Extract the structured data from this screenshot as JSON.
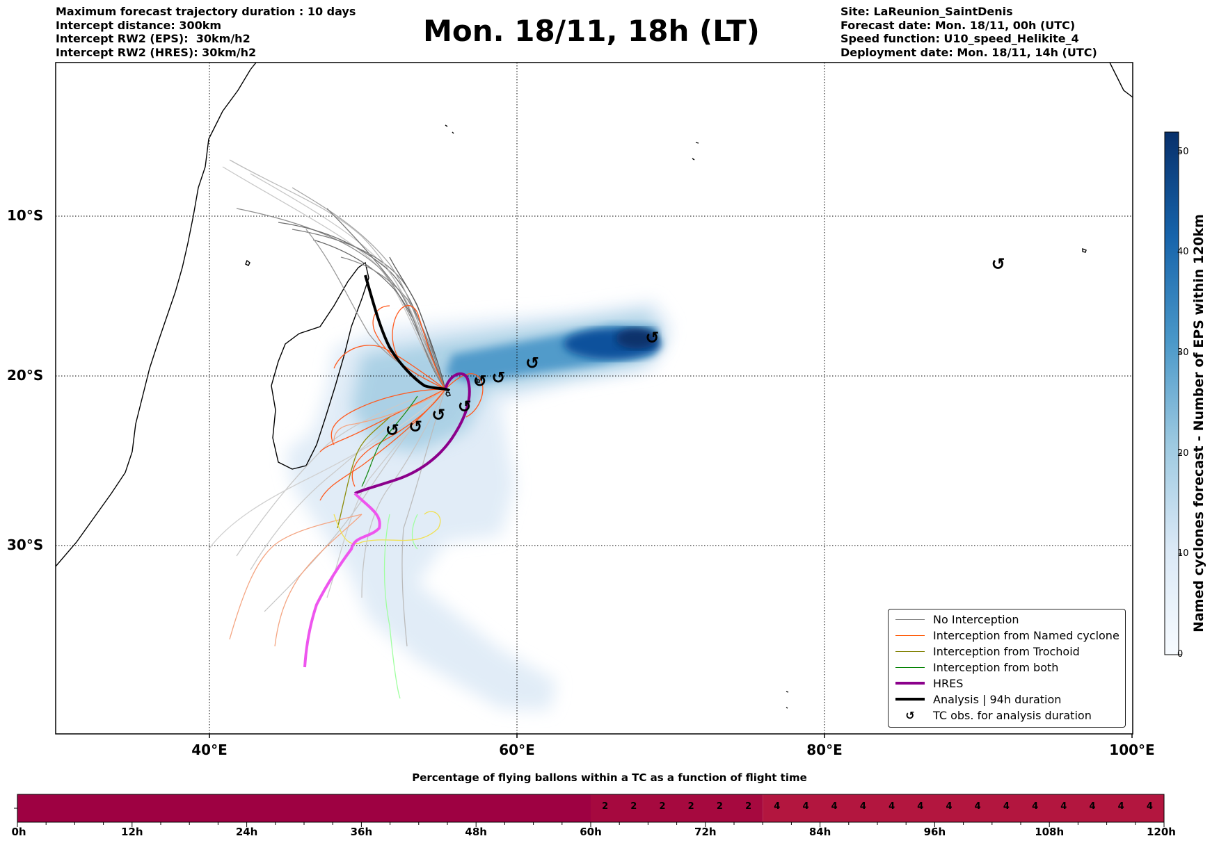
{
  "header": {
    "left_lines": [
      "Maximum forecast trajectory duration : 10 days",
      "Intercept distance: 300km",
      "Intercept RW2 (EPS):  30km/h2",
      "Intercept RW2 (HRES): 30km/h2"
    ],
    "title": "Mon. 18/11, 18h (LT)",
    "right_lines": [
      "Site: LaReunion_SaintDenis",
      "Forecast date: Mon. 18/11, 00h (UTC)",
      "Speed function: U10_speed_Helikite_4",
      "Deployment date: Mon. 18/11, 14h (UTC)"
    ]
  },
  "map": {
    "lat_labels": [
      "10°S",
      "20°S",
      "30°S"
    ],
    "lon_labels": [
      "40°E",
      "60°E",
      "80°E",
      "100°E"
    ],
    "extent": {
      "lon": [
        30,
        100
      ],
      "lat": [
        -43,
        0
      ]
    },
    "tc_obs_positions": [
      {
        "lon": 51.9,
        "lat": -23.2
      },
      {
        "lon": 53.4,
        "lat": -23.0
      },
      {
        "lon": 54.9,
        "lat": -22.3
      },
      {
        "lon": 56.6,
        "lat": -21.8
      },
      {
        "lon": 57.6,
        "lat": -20.3
      },
      {
        "lon": 58.8,
        "lat": -20.1
      },
      {
        "lon": 61.0,
        "lat": -19.2
      },
      {
        "lon": 68.8,
        "lat": -17.6
      },
      {
        "lon": 91.3,
        "lat": -13.0
      }
    ]
  },
  "colorbar": {
    "label": "Named cyclones forecast - Number of EPS within 120km",
    "ticks": [
      "0",
      "10",
      "20",
      "30",
      "40",
      "50"
    ],
    "range": [
      0,
      52
    ],
    "colors": {
      "low": "#f7fbff",
      "high": "#08306b"
    }
  },
  "legend": {
    "items": [
      {
        "label": "No Interception",
        "color": "#7f7f7f",
        "kind": "thin-line"
      },
      {
        "label": "Interception from Named cyclone",
        "color": "#ff5500",
        "kind": "thin-line"
      },
      {
        "label": "Interception from Trochoid",
        "color": "#808000",
        "kind": "thin-line"
      },
      {
        "label": "Interception from both",
        "color": "#008000",
        "kind": "thin-line"
      },
      {
        "label": "HRES",
        "color": "#8b008b",
        "kind": "thick-line"
      },
      {
        "label": "Analysis | 94h duration",
        "color": "#000000",
        "kind": "thick-line"
      },
      {
        "label": "TC obs. for analysis duration",
        "color": "#000000",
        "kind": "symbol",
        "symbol": "cyclone-symbol"
      }
    ]
  },
  "flight_bar": {
    "title": "Percentage of flying ballons within a TC as a function of flight time",
    "tick_labels": [
      "0h",
      "12h",
      "24h",
      "36h",
      "48h",
      "60h",
      "72h",
      "84h",
      "96h",
      "108h",
      "120h"
    ],
    "segments": [
      {
        "from_h": 0,
        "to_h": 60,
        "value": 0,
        "color": "#9e0142"
      },
      {
        "from_h": 60,
        "to_h": 78,
        "value": 2,
        "color": "#a6093f"
      },
      {
        "from_h": 78,
        "to_h": 120,
        "value": 4,
        "color": "#b3163f"
      }
    ],
    "cell_values": [
      "2",
      "2",
      "2",
      "2",
      "2",
      "2",
      "4",
      "4",
      "4",
      "4",
      "4",
      "4",
      "4",
      "4",
      "4",
      "4",
      "4",
      "4",
      "4",
      "4"
    ]
  }
}
